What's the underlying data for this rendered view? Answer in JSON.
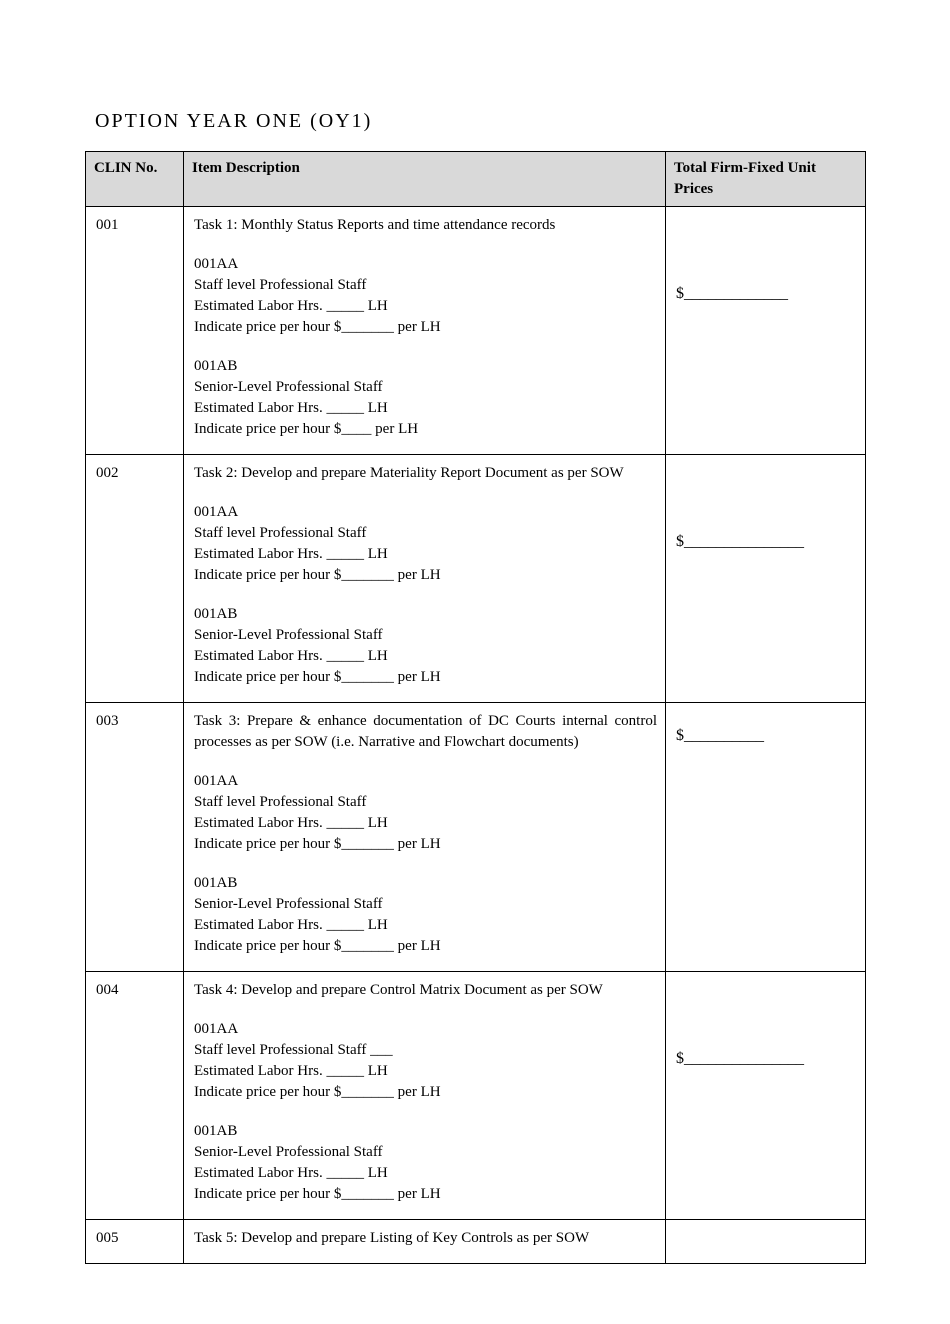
{
  "title": "OPTION YEAR ONE (OY1)",
  "table": {
    "headers": {
      "clin": "CLIN No.",
      "desc": "Item Description",
      "price": "Total Firm-Fixed Unit Prices"
    },
    "header_bg": "#d9d9d9",
    "border_color": "#000000",
    "font_family": "Times New Roman",
    "title_fontsize": 20,
    "cell_fontsize": 15,
    "rows": [
      {
        "clin": "001",
        "task": "Task 1:  Monthly Status Reports and time attendance records",
        "task_justify": false,
        "aa_code": "001AA",
        "aa_title": "Staff level Professional Staff",
        "aa_hours": "Estimated Labor Hrs. _____ LH",
        "aa_price": "Indicate price per hour  $_______ per LH",
        "ab_code": "001AB",
        "ab_title": "Senior-Level Professional Staff",
        "ab_hours": "Estimated Labor Hrs. _____ LH",
        "ab_price": "Indicate price per hour $____ per LH",
        "price": "$_____________"
      },
      {
        "clin": "002",
        "task": "Task 2: Develop and prepare Materiality Report Document as per SOW",
        "task_justify": false,
        "aa_code": "001AA",
        "aa_title": "Staff level Professional Staff",
        "aa_hours": "Estimated Labor Hrs. _____ LH",
        "aa_price": "Indicate price per hour  $_______ per LH",
        "ab_code": "001AB",
        "ab_title": "Senior-Level Professional Staff",
        "ab_hours": "Estimated Labor Hrs. _____ LH",
        "ab_price": "Indicate price per hour  $_______ per LH",
        "price": "$_______________"
      },
      {
        "clin": "003",
        "task": "Task 3:  Prepare & enhance documentation of DC Courts internal control processes as per SOW (i.e. Narrative and Flowchart documents)",
        "task_justify": true,
        "aa_code": "001AA",
        "aa_title": "Staff level Professional Staff",
        "aa_hours": "Estimated Labor Hrs. _____ LH",
        "aa_price": "Indicate price per hour  $_______ per LH",
        "ab_code": "001AB",
        "ab_title": "Senior-Level Professional Staff",
        "ab_hours": "Estimated Labor Hrs. _____ LH",
        "ab_price": "Indicate price per hour  $_______ per LH",
        "price": "$__________",
        "price_margin_top": 14
      },
      {
        "clin": "004",
        "task": "Task 4: Develop and prepare Control Matrix Document as per SOW",
        "task_justify": false,
        "aa_code": "001AA",
        "aa_title": "Staff level Professional Staff   ___",
        "aa_hours": "Estimated Labor Hrs. _____ LH",
        "aa_price": "Indicate price per hour  $_______ per LH",
        "ab_code": "001AB",
        "ab_title": "Senior-Level Professional Staff",
        "ab_hours": "Estimated Labor Hrs. _____ LH",
        "ab_price": "Indicate price per hour  $_______ per LH",
        "price": "$_______________"
      },
      {
        "clin": "005",
        "task": "Task 5: Develop and prepare Listing of Key Controls as per SOW",
        "task_justify": false,
        "price": "",
        "short": true
      }
    ]
  }
}
